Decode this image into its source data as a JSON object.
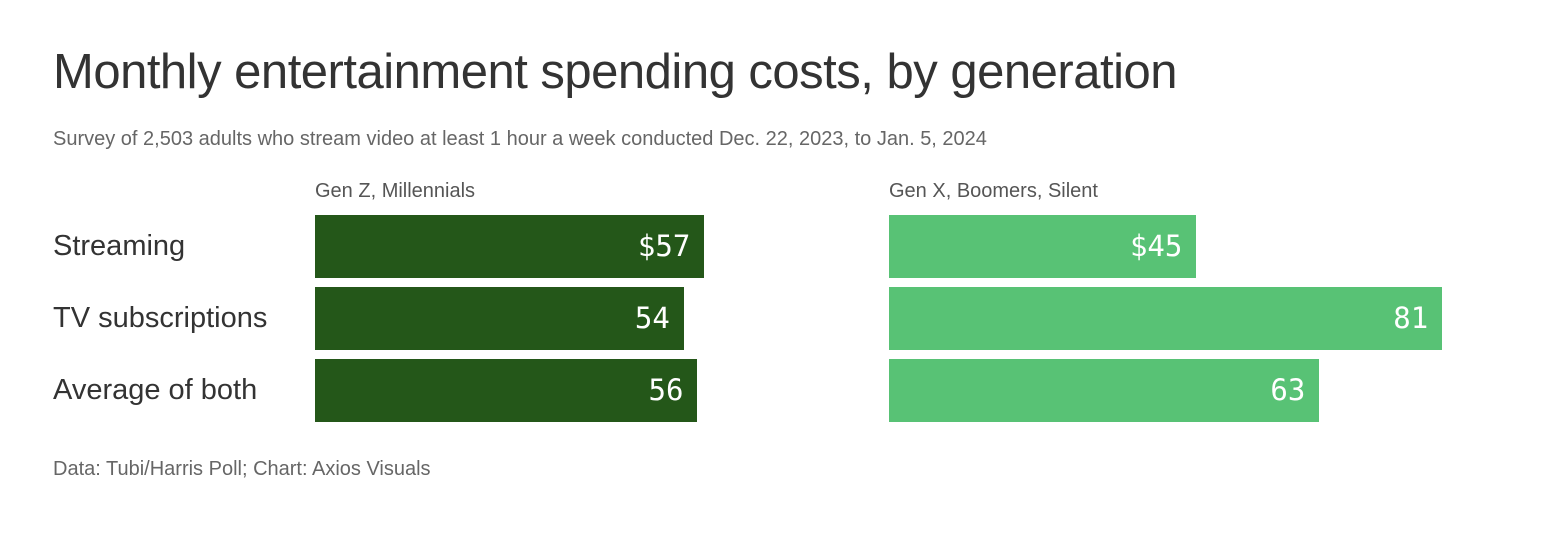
{
  "chart_data": {
    "type": "bar",
    "title": "Monthly entertainment spending costs, by generation",
    "subtitle": "Survey of 2,503 adults who stream video at least 1 hour a week conducted Dec. 22, 2023, to Jan. 5, 2024",
    "categories": [
      "Streaming",
      "TV subscriptions",
      "Average of both"
    ],
    "series": [
      {
        "name": "Gen Z, Millennials",
        "values": [
          57,
          54,
          56
        ],
        "labels": [
          "$57",
          "54",
          "56"
        ],
        "color": "#245719"
      },
      {
        "name": "Gen X, Boomers, Silent",
        "values": [
          45,
          81,
          63
        ],
        "labels": [
          "$45",
          "81",
          "63"
        ],
        "color": "#58c275"
      }
    ],
    "unit": "$",
    "grid": false,
    "source": "Data: Tubi/Harris Poll; Chart: Axios Visuals"
  }
}
